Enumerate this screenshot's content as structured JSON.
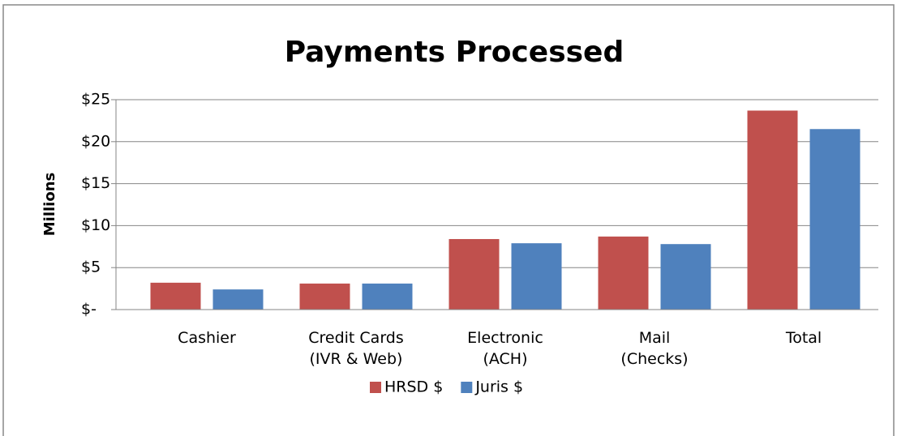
{
  "chart_data": {
    "type": "bar",
    "title": "Payments Processed",
    "y_label": "Millions",
    "categories": [
      "Cashier",
      "Credit Cards\n(IVR & Web)",
      "Electronic\n(ACH)",
      "Mail\n(Checks)",
      "Total"
    ],
    "series": [
      {
        "name": "HRSD $",
        "color": "#c0504d",
        "values": [
          3.2,
          3.1,
          8.4,
          8.7,
          23.7
        ]
      },
      {
        "name": "Juris $",
        "color": "#4f81bd",
        "values": [
          2.4,
          3.1,
          7.9,
          7.8,
          21.5
        ]
      }
    ],
    "ylim": [
      0,
      25
    ],
    "yticks": [
      {
        "value": 0,
        "label": "$-"
      },
      {
        "value": 5,
        "label": "$5"
      },
      {
        "value": 10,
        "label": "$10"
      },
      {
        "value": 15,
        "label": "$15"
      },
      {
        "value": 20,
        "label": "$20"
      },
      {
        "value": 25,
        "label": "$25"
      }
    ],
    "grid": true,
    "legend": "bottom"
  }
}
